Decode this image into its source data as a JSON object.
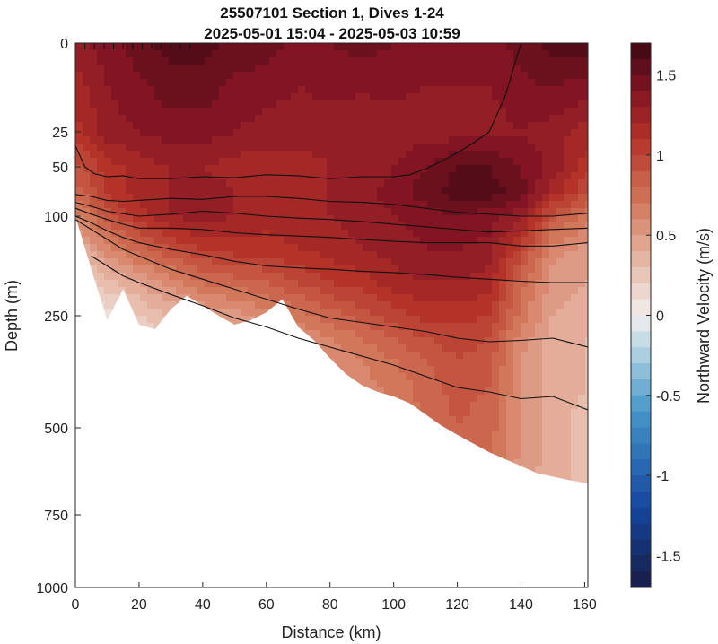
{
  "chart_data": {
    "type": "heatmap",
    "title_lines": [
      "25507101 Section 1, Dives 1-24",
      "2025-05-01 15:04 - 2025-05-03 10:59"
    ],
    "xlabel": "Distance (km)",
    "ylabel": "Depth (m)",
    "colorbar_label": "Northward Velocity (m/s)",
    "xlim": [
      0,
      161
    ],
    "ylim": [
      0,
      1000
    ],
    "x_ticks": [
      0,
      20,
      40,
      60,
      80,
      100,
      120,
      140,
      160
    ],
    "y_ticks": [
      0,
      25,
      50,
      100,
      250,
      500,
      750,
      1000
    ],
    "y_tick_labels": [
      "0",
      "25",
      "50",
      "100",
      "250",
      "500",
      "750",
      "1000"
    ],
    "colorbar_range": [
      -1.7,
      1.7
    ],
    "colorbar_ticks": [
      1.5,
      1,
      0.5,
      0,
      -0.5,
      -1,
      -1.5
    ],
    "colorbar_tick_labels": [
      "1.5",
      "1",
      "0.5",
      "0",
      "-0.5",
      "-1",
      "-1.5"
    ],
    "colormap": "diverging blue-white-red (balance)",
    "grid": false,
    "dive_markers_km": [
      0,
      3,
      6,
      9,
      12,
      15,
      18,
      21,
      24,
      27,
      30,
      33,
      36
    ],
    "data_bottom_depth": {
      "x": [
        0,
        5,
        10,
        15,
        20,
        25,
        30,
        35,
        40,
        45,
        50,
        55,
        60,
        65,
        70,
        75,
        80,
        85,
        90,
        95,
        100,
        105,
        110,
        115,
        120,
        125,
        130,
        135,
        140,
        145,
        150,
        155,
        161
      ],
      "depth": [
        100,
        180,
        260,
        210,
        270,
        280,
        240,
        220,
        235,
        250,
        270,
        260,
        245,
        225,
        275,
        305,
        345,
        380,
        405,
        420,
        430,
        445,
        470,
        495,
        520,
        545,
        570,
        590,
        610,
        630,
        640,
        650,
        660
      ]
    },
    "velocity_field": {
      "x": [
        0,
        10,
        20,
        30,
        40,
        50,
        60,
        70,
        80,
        90,
        100,
        110,
        120,
        130,
        140,
        150,
        161
      ],
      "depth": [
        0,
        25,
        50,
        75,
        100,
        150,
        200,
        250,
        300,
        350,
        400,
        500,
        650
      ],
      "v": [
        [
          1.3,
          1.4,
          1.5,
          1.6,
          1.6,
          1.5,
          1.5,
          1.4,
          1.45,
          1.5,
          1.45,
          1.4,
          1.4,
          1.4,
          1.5,
          1.6,
          1.6
        ],
        [
          1.1,
          1.3,
          1.35,
          1.4,
          1.4,
          1.35,
          1.3,
          1.3,
          1.3,
          1.25,
          1.3,
          1.3,
          1.3,
          1.3,
          1.35,
          1.3,
          1.2
        ],
        [
          0.9,
          1.1,
          1.2,
          1.25,
          1.25,
          1.2,
          1.2,
          1.2,
          1.25,
          1.25,
          1.35,
          1.45,
          1.55,
          1.55,
          1.45,
          1.3,
          1.1
        ],
        [
          0.8,
          1.05,
          1.2,
          1.25,
          1.3,
          1.25,
          1.2,
          1.25,
          1.25,
          1.3,
          1.4,
          1.5,
          1.6,
          1.6,
          1.5,
          1.2,
          0.95
        ],
        [
          0.6,
          0.9,
          1.1,
          1.25,
          1.3,
          1.25,
          1.2,
          1.2,
          1.25,
          1.3,
          1.35,
          1.4,
          1.45,
          1.4,
          1.3,
          0.9,
          0.7
        ],
        [
          0.35,
          0.6,
          0.8,
          0.95,
          1.05,
          1.1,
          1.1,
          1.15,
          1.2,
          1.25,
          1.3,
          1.35,
          1.35,
          1.3,
          1.0,
          0.6,
          0.5
        ],
        [
          0.1,
          0.3,
          0.45,
          0.6,
          0.75,
          0.8,
          0.85,
          0.95,
          1.05,
          1.1,
          1.2,
          1.25,
          1.25,
          1.2,
          0.8,
          0.5,
          0.45
        ],
        [
          0.05,
          0.1,
          0.25,
          0.35,
          0.45,
          0.5,
          0.6,
          0.7,
          0.8,
          0.9,
          1.0,
          1.1,
          1.1,
          1.05,
          0.7,
          0.45,
          0.4
        ],
        [
          0.05,
          0.1,
          0.15,
          0.25,
          0.35,
          0.4,
          0.45,
          0.55,
          0.65,
          0.75,
          0.85,
          0.95,
          1.0,
          0.95,
          0.6,
          0.4,
          0.35
        ],
        [
          0.05,
          0.1,
          0.15,
          0.2,
          0.3,
          0.35,
          0.4,
          0.45,
          0.55,
          0.65,
          0.75,
          0.85,
          0.95,
          0.9,
          0.55,
          0.4,
          0.35
        ],
        [
          0.05,
          0.1,
          0.15,
          0.2,
          0.25,
          0.3,
          0.35,
          0.4,
          0.5,
          0.6,
          0.7,
          0.8,
          0.9,
          0.85,
          0.55,
          0.4,
          0.35
        ],
        [
          0.05,
          0.1,
          0.15,
          0.2,
          0.25,
          0.3,
          0.35,
          0.4,
          0.45,
          0.55,
          0.65,
          0.75,
          0.85,
          0.8,
          0.55,
          0.4,
          0.3
        ],
        [
          0.05,
          0.1,
          0.15,
          0.2,
          0.25,
          0.3,
          0.35,
          0.4,
          0.45,
          0.5,
          0.6,
          0.7,
          0.8,
          0.75,
          0.5,
          0.4,
          0.3
        ]
      ]
    },
    "contour_lines": [
      {
        "x": [
          0,
          3,
          6,
          10,
          15,
          20,
          30,
          40,
          50,
          60,
          70,
          80,
          90,
          100,
          105
        ],
        "depth": [
          35,
          50,
          57,
          60,
          59,
          62,
          62,
          60,
          61,
          58,
          59,
          62,
          60,
          60,
          58
        ]
      },
      {
        "x": [
          105,
          110,
          115,
          120,
          125,
          130,
          135,
          140
        ],
        "depth": [
          58,
          52,
          46,
          40,
          33,
          25,
          15,
          0
        ]
      },
      {
        "x": [
          0,
          5,
          10,
          15,
          20,
          30,
          40,
          50,
          60,
          70,
          80,
          90,
          100,
          110,
          120,
          130,
          140,
          150,
          161
        ],
        "depth": [
          78,
          80,
          84,
          85,
          84,
          82,
          83,
          80,
          80,
          82,
          85,
          86,
          88,
          92,
          96,
          98,
          100,
          100,
          97
        ]
      },
      {
        "x": [
          0,
          5,
          10,
          20,
          30,
          40,
          50,
          60,
          70,
          80,
          90,
          100,
          110,
          120,
          130,
          140,
          150,
          161
        ],
        "depth": [
          86,
          90,
          95,
          100,
          98,
          95,
          97,
          100,
          103,
          105,
          108,
          112,
          116,
          120,
          124,
          122,
          120,
          118
        ]
      },
      {
        "x": [
          0,
          5,
          10,
          15,
          20,
          30,
          40,
          50,
          60,
          70,
          80,
          90,
          100,
          110,
          120,
          130,
          140,
          150,
          161
        ],
        "depth": [
          92,
          98,
          105,
          112,
          118,
          118,
          120,
          125,
          128,
          130,
          132,
          135,
          138,
          140,
          140,
          140,
          145,
          145,
          140
        ]
      },
      {
        "x": [
          0,
          5,
          10,
          15,
          20,
          30,
          40,
          50,
          60,
          70,
          80,
          90,
          100,
          110,
          120,
          130,
          140,
          150,
          161
        ],
        "depth": [
          100,
          110,
          122,
          132,
          140,
          150,
          158,
          168,
          175,
          178,
          180,
          183,
          185,
          188,
          192,
          195,
          198,
          200,
          200
        ]
      },
      {
        "x": [
          0,
          5,
          10,
          15,
          20,
          30,
          40,
          50,
          60,
          70,
          80,
          90,
          100,
          110,
          120,
          130,
          140,
          150,
          161
        ],
        "depth": [
          105,
          120,
          135,
          150,
          160,
          180,
          195,
          210,
          225,
          240,
          255,
          265,
          275,
          285,
          300,
          308,
          305,
          300,
          320
        ]
      },
      {
        "x": [
          5,
          10,
          15,
          20,
          30,
          40,
          50,
          60,
          70,
          80,
          90,
          100,
          110,
          120,
          130,
          140,
          150,
          161
        ],
        "depth": [
          160,
          175,
          190,
          200,
          218,
          235,
          255,
          275,
          300,
          320,
          340,
          360,
          385,
          410,
          420,
          435,
          430,
          460
        ]
      }
    ]
  }
}
